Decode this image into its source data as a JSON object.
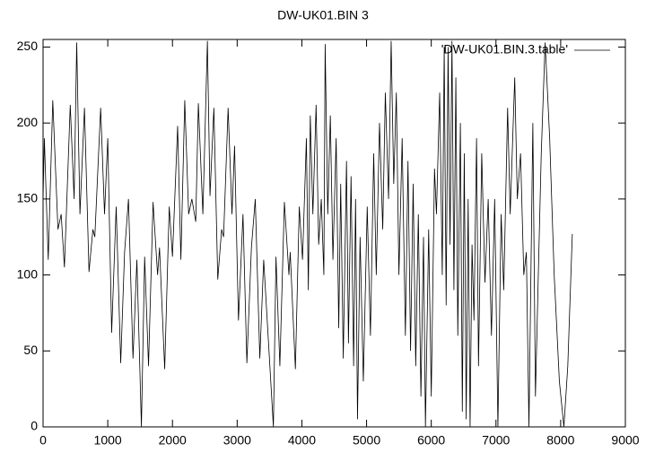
{
  "chart_data": {
    "type": "line",
    "title": "DW-UK01.BIN 3",
    "x": [
      0,
      20,
      80,
      150,
      230,
      280,
      330,
      420,
      480,
      520,
      570,
      640,
      710,
      770,
      800,
      890,
      950,
      1000,
      1060,
      1130,
      1200,
      1260,
      1320,
      1390,
      1450,
      1520,
      1570,
      1630,
      1700,
      1770,
      1800,
      1880,
      1950,
      2000,
      2080,
      2130,
      2190,
      2250,
      2300,
      2360,
      2400,
      2470,
      2540,
      2580,
      2640,
      2700,
      2760,
      2790,
      2860,
      2920,
      2960,
      3020,
      3090,
      3150,
      3220,
      3280,
      3350,
      3410,
      3560,
      3600,
      3660,
      3730,
      3800,
      3820,
      3900,
      3960,
      4010,
      4070,
      4100,
      4130,
      4170,
      4220,
      4260,
      4300,
      4340,
      4360,
      4400,
      4440,
      4480,
      4530,
      4570,
      4600,
      4640,
      4690,
      4720,
      4760,
      4800,
      4830,
      4860,
      4900,
      4950,
      5010,
      5060,
      5110,
      5150,
      5200,
      5250,
      5290,
      5340,
      5380,
      5420,
      5460,
      5500,
      5550,
      5600,
      5640,
      5680,
      5720,
      5760,
      5800,
      5840,
      5880,
      5910,
      5960,
      6000,
      6050,
      6080,
      6130,
      6170,
      6200,
      6230,
      6260,
      6290,
      6320,
      6350,
      6380,
      6410,
      6450,
      6480,
      6510,
      6540,
      6570,
      6600,
      6630,
      6660,
      6700,
      6730,
      6780,
      6830,
      6880,
      6930,
      6980,
      7030,
      7080,
      7120,
      7180,
      7220,
      7290,
      7330,
      7380,
      7430,
      7470,
      7510,
      7570,
      7610,
      7660,
      7700,
      7760,
      7830,
      7900,
      7980,
      8050,
      8110,
      8180
    ],
    "series": [
      {
        "name": "'DW-UK01.BIN.3.table'",
        "color": "#000000",
        "values": [
          150,
          190,
          110,
          215,
          130,
          140,
          105,
          212,
          150,
          253,
          140,
          210,
          102,
          130,
          125,
          210,
          140,
          190,
          62,
          145,
          42,
          115,
          150,
          45,
          110,
          0,
          112,
          40,
          148,
          100,
          118,
          38,
          145,
          112,
          198,
          110,
          215,
          140,
          150,
          135,
          213,
          140,
          254,
          152,
          210,
          97,
          130,
          125,
          210,
          140,
          185,
          70,
          140,
          42,
          118,
          150,
          45,
          110,
          0,
          112,
          40,
          148,
          100,
          115,
          38,
          145,
          110,
          190,
          90,
          205,
          140,
          212,
          120,
          150,
          100,
          252,
          140,
          205,
          110,
          190,
          65,
          160,
          45,
          175,
          55,
          165,
          40,
          150,
          5,
          125,
          30,
          145,
          60,
          180,
          100,
          200,
          130,
          220,
          150,
          254,
          160,
          220,
          100,
          190,
          60,
          175,
          50,
          160,
          40,
          140,
          20,
          125,
          0,
          130,
          20,
          170,
          140,
          220,
          100,
          250,
          80,
          250,
          120,
          254,
          90,
          230,
          60,
          200,
          10,
          180,
          5,
          150,
          0,
          120,
          70,
          190,
          40,
          180,
          95,
          150,
          60,
          150,
          0,
          140,
          90,
          210,
          140,
          230,
          150,
          180,
          100,
          115,
          0,
          200,
          20,
          110,
          180,
          253,
          190,
          100,
          30,
          0,
          40,
          127
        ]
      }
    ],
    "xlim": [
      0,
      9000
    ],
    "xticks": [
      0,
      1000,
      2000,
      3000,
      4000,
      5000,
      6000,
      7000,
      8000,
      9000
    ],
    "ylim": [
      0,
      255
    ],
    "yticks": [
      0,
      50,
      100,
      150,
      200,
      250
    ],
    "legend": "top-right"
  }
}
